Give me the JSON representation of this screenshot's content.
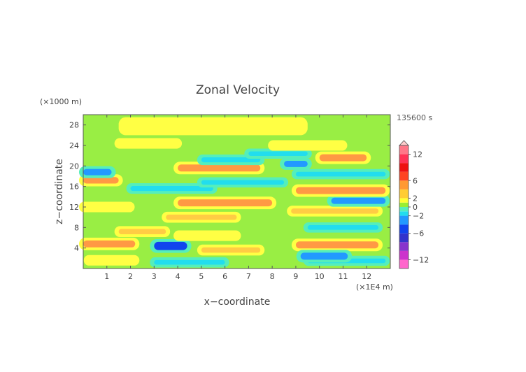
{
  "chart_data": {
    "type": "heatmap",
    "title": "Zonal Velocity",
    "xlabel": "x−coordinate",
    "ylabel": "z−coordinate",
    "x_unit": "(×1E4 m)",
    "y_unit": "(×1000 m)",
    "time_label": "135600 s",
    "xlim": [
      0,
      13
    ],
    "ylim": [
      0,
      30
    ],
    "xticks": [
      "1",
      "2",
      "3",
      "4",
      "5",
      "6",
      "7",
      "8",
      "9",
      "10",
      "11",
      "12"
    ],
    "yticks": [
      "4",
      "8",
      "12",
      "16",
      "20",
      "24",
      "28"
    ],
    "colorbar": {
      "tick_labels": [
        "12",
        "6",
        "2",
        "0",
        "−2",
        "−6",
        "−12"
      ],
      "tick_values": [
        12,
        6,
        2,
        0,
        -2,
        -6,
        -12
      ],
      "range": [
        -14,
        14
      ]
    },
    "bands": [
      {
        "z": 1.6,
        "x": [
          0.2,
          2.2
        ],
        "value": 1.6
      },
      {
        "z": 1.2,
        "x": [
          3.0,
          6.0
        ],
        "value": -1.2
      },
      {
        "z": 1.5,
        "x": [
          9.5,
          12.8
        ],
        "value": -1.2
      },
      {
        "z": 4.8,
        "x": [
          0.0,
          2.2
        ],
        "value": 3.8
      },
      {
        "z": 4.4,
        "x": [
          3.0,
          4.4
        ],
        "value": -5.2
      },
      {
        "z": 3.6,
        "x": [
          5.0,
          7.5
        ],
        "value": 2.0
      },
      {
        "z": 4.6,
        "x": [
          9.0,
          12.5
        ],
        "value": 3.8
      },
      {
        "z": 2.4,
        "x": [
          9.2,
          11.2
        ],
        "value": -3.8
      },
      {
        "z": 7.2,
        "x": [
          1.5,
          3.5
        ],
        "value": 2.0
      },
      {
        "z": 6.4,
        "x": [
          4.0,
          6.5
        ],
        "value": 1.6
      },
      {
        "z": 8.0,
        "x": [
          9.5,
          12.5
        ],
        "value": -1.2
      },
      {
        "z": 10.0,
        "x": [
          3.5,
          6.5
        ],
        "value": 2.0
      },
      {
        "z": 11.2,
        "x": [
          8.8,
          12.5
        ],
        "value": 2.0
      },
      {
        "z": 12.0,
        "x": [
          0.0,
          2.0
        ],
        "value": 1.6
      },
      {
        "z": 12.8,
        "x": [
          4.0,
          8.0
        ],
        "value": 3.8
      },
      {
        "z": 13.2,
        "x": [
          10.5,
          12.8
        ],
        "value": -3.0
      },
      {
        "z": 15.6,
        "x": [
          2.0,
          5.5
        ],
        "value": -1.6
      },
      {
        "z": 15.2,
        "x": [
          9.0,
          12.8
        ],
        "value": 3.8
      },
      {
        "z": 16.8,
        "x": [
          5.0,
          8.5
        ],
        "value": -1.2
      },
      {
        "z": 17.2,
        "x": [
          0.0,
          1.5
        ],
        "value": 3.2
      },
      {
        "z": 18.8,
        "x": [
          0.0,
          1.2
        ],
        "value": -3.0
      },
      {
        "z": 19.6,
        "x": [
          4.0,
          7.5
        ],
        "value": 3.8
      },
      {
        "z": 18.4,
        "x": [
          9.0,
          12.8
        ],
        "value": -1.2
      },
      {
        "z": 20.4,
        "x": [
          8.5,
          9.5
        ],
        "value": -3.0
      },
      {
        "z": 21.2,
        "x": [
          5.0,
          7.5
        ],
        "value": -1.6
      },
      {
        "z": 21.6,
        "x": [
          10.0,
          12.0
        ],
        "value": 3.8
      },
      {
        "z": 22.4,
        "x": [
          7.0,
          9.5
        ],
        "value": -1.2
      },
      {
        "z": 24.4,
        "x": [
          1.5,
          4.0
        ],
        "value": 1.6
      },
      {
        "z": 24.0,
        "x": [
          8.0,
          11.0
        ],
        "value": 1.6
      }
    ]
  }
}
